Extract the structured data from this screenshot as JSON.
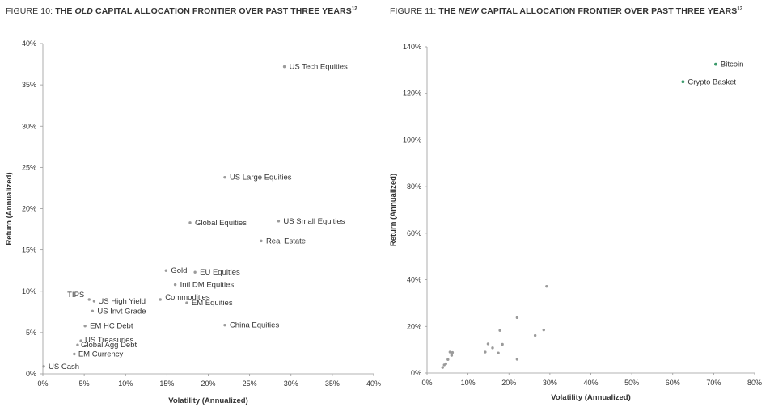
{
  "figures": {
    "left": {
      "title_prefix": "FIGURE 10: ",
      "title_pre": "THE ",
      "title_emph": "OLD",
      "title_post": " CAPITAL ALLOCATION FRONTIER OVER PAST THREE YEARS",
      "footnote": "12"
    },
    "right": {
      "title_prefix": "FIGURE 11: ",
      "title_pre": "THE ",
      "title_emph": "NEW",
      "title_post": " CAPITAL ALLOCATION FRONTIER OVER PAST THREE YEARS",
      "footnote": "13"
    }
  },
  "chart_data": [
    {
      "type": "scatter",
      "title": "FIGURE 10: THE OLD CAPITAL ALLOCATION FRONTIER OVER PAST THREE YEARS",
      "xlabel": "Volatility (Annualized)",
      "ylabel": "Return (Annualized)",
      "xlim": [
        0,
        40
      ],
      "ylim": [
        0,
        40
      ],
      "xticks": [
        "0%",
        "5%",
        "10%",
        "15%",
        "20%",
        "25%",
        "30%",
        "35%",
        "40%"
      ],
      "yticks": [
        "0%",
        "5%",
        "10%",
        "15%",
        "20%",
        "25%",
        "30%",
        "35%",
        "40%"
      ],
      "grid": false,
      "points": [
        {
          "name": "US Tech Equities",
          "x": 29.2,
          "y": 37.2
        },
        {
          "name": "US Large Equities",
          "x": 22.0,
          "y": 23.8
        },
        {
          "name": "Global Equities",
          "x": 17.8,
          "y": 18.3
        },
        {
          "name": "US Small Equities",
          "x": 28.5,
          "y": 18.5
        },
        {
          "name": "Real Estate",
          "x": 26.4,
          "y": 16.1
        },
        {
          "name": "Gold",
          "x": 14.9,
          "y": 12.5
        },
        {
          "name": "EU Equities",
          "x": 18.4,
          "y": 12.3
        },
        {
          "name": "Intl DM Equities",
          "x": 16.0,
          "y": 10.8
        },
        {
          "name": "Commodities",
          "x": 14.2,
          "y": 9.0
        },
        {
          "name": "EM Equities",
          "x": 17.4,
          "y": 8.6
        },
        {
          "name": "China Equities",
          "x": 22.0,
          "y": 5.9
        },
        {
          "name": "TIPS",
          "x": 5.6,
          "y": 9.0
        },
        {
          "name": "US High Yield",
          "x": 6.2,
          "y": 8.8
        },
        {
          "name": "US Invt Grade",
          "x": 6.0,
          "y": 7.6
        },
        {
          "name": "EM HC Debt",
          "x": 5.1,
          "y": 5.8
        },
        {
          "name": "US Treasuries",
          "x": 4.6,
          "y": 4.0
        },
        {
          "name": "Global Agg Debt",
          "x": 4.2,
          "y": 3.5
        },
        {
          "name": "EM Currency",
          "x": 3.8,
          "y": 2.4
        },
        {
          "name": "US Cash",
          "x": 0.1,
          "y": 0.9
        }
      ]
    },
    {
      "type": "scatter",
      "title": "FIGURE 11: THE NEW CAPITAL ALLOCATION FRONTIER OVER PAST THREE YEARS",
      "xlabel": "Volatility (Annualized)",
      "ylabel": "Return (Annualized)",
      "xlim": [
        0,
        80
      ],
      "ylim": [
        0,
        140
      ],
      "xticks": [
        "0%",
        "10%",
        "20%",
        "30%",
        "40%",
        "50%",
        "60%",
        "70%",
        "80%"
      ],
      "yticks": [
        "0%",
        "20%",
        "40%",
        "60%",
        "80%",
        "100%",
        "120%",
        "140%"
      ],
      "grid": false,
      "highlight_color": "#3b9a6b",
      "points": [
        {
          "name": "Bitcoin",
          "x": 70.5,
          "y": 132.5,
          "highlight": true
        },
        {
          "name": "Crypto Basket",
          "x": 62.5,
          "y": 125.0,
          "highlight": true
        },
        {
          "x": 29.2,
          "y": 37.2
        },
        {
          "x": 22.0,
          "y": 23.8
        },
        {
          "x": 17.8,
          "y": 18.3
        },
        {
          "x": 28.5,
          "y": 18.5
        },
        {
          "x": 26.4,
          "y": 16.1
        },
        {
          "x": 14.9,
          "y": 12.5
        },
        {
          "x": 18.4,
          "y": 12.3
        },
        {
          "x": 16.0,
          "y": 10.8
        },
        {
          "x": 14.2,
          "y": 9.0
        },
        {
          "x": 17.4,
          "y": 8.6
        },
        {
          "x": 22.0,
          "y": 5.9
        },
        {
          "x": 5.6,
          "y": 9.0
        },
        {
          "x": 6.2,
          "y": 8.8
        },
        {
          "x": 6.0,
          "y": 7.6
        },
        {
          "x": 5.1,
          "y": 5.8
        },
        {
          "x": 4.6,
          "y": 4.0
        },
        {
          "x": 4.2,
          "y": 3.5
        },
        {
          "x": 3.8,
          "y": 2.4
        }
      ]
    }
  ]
}
